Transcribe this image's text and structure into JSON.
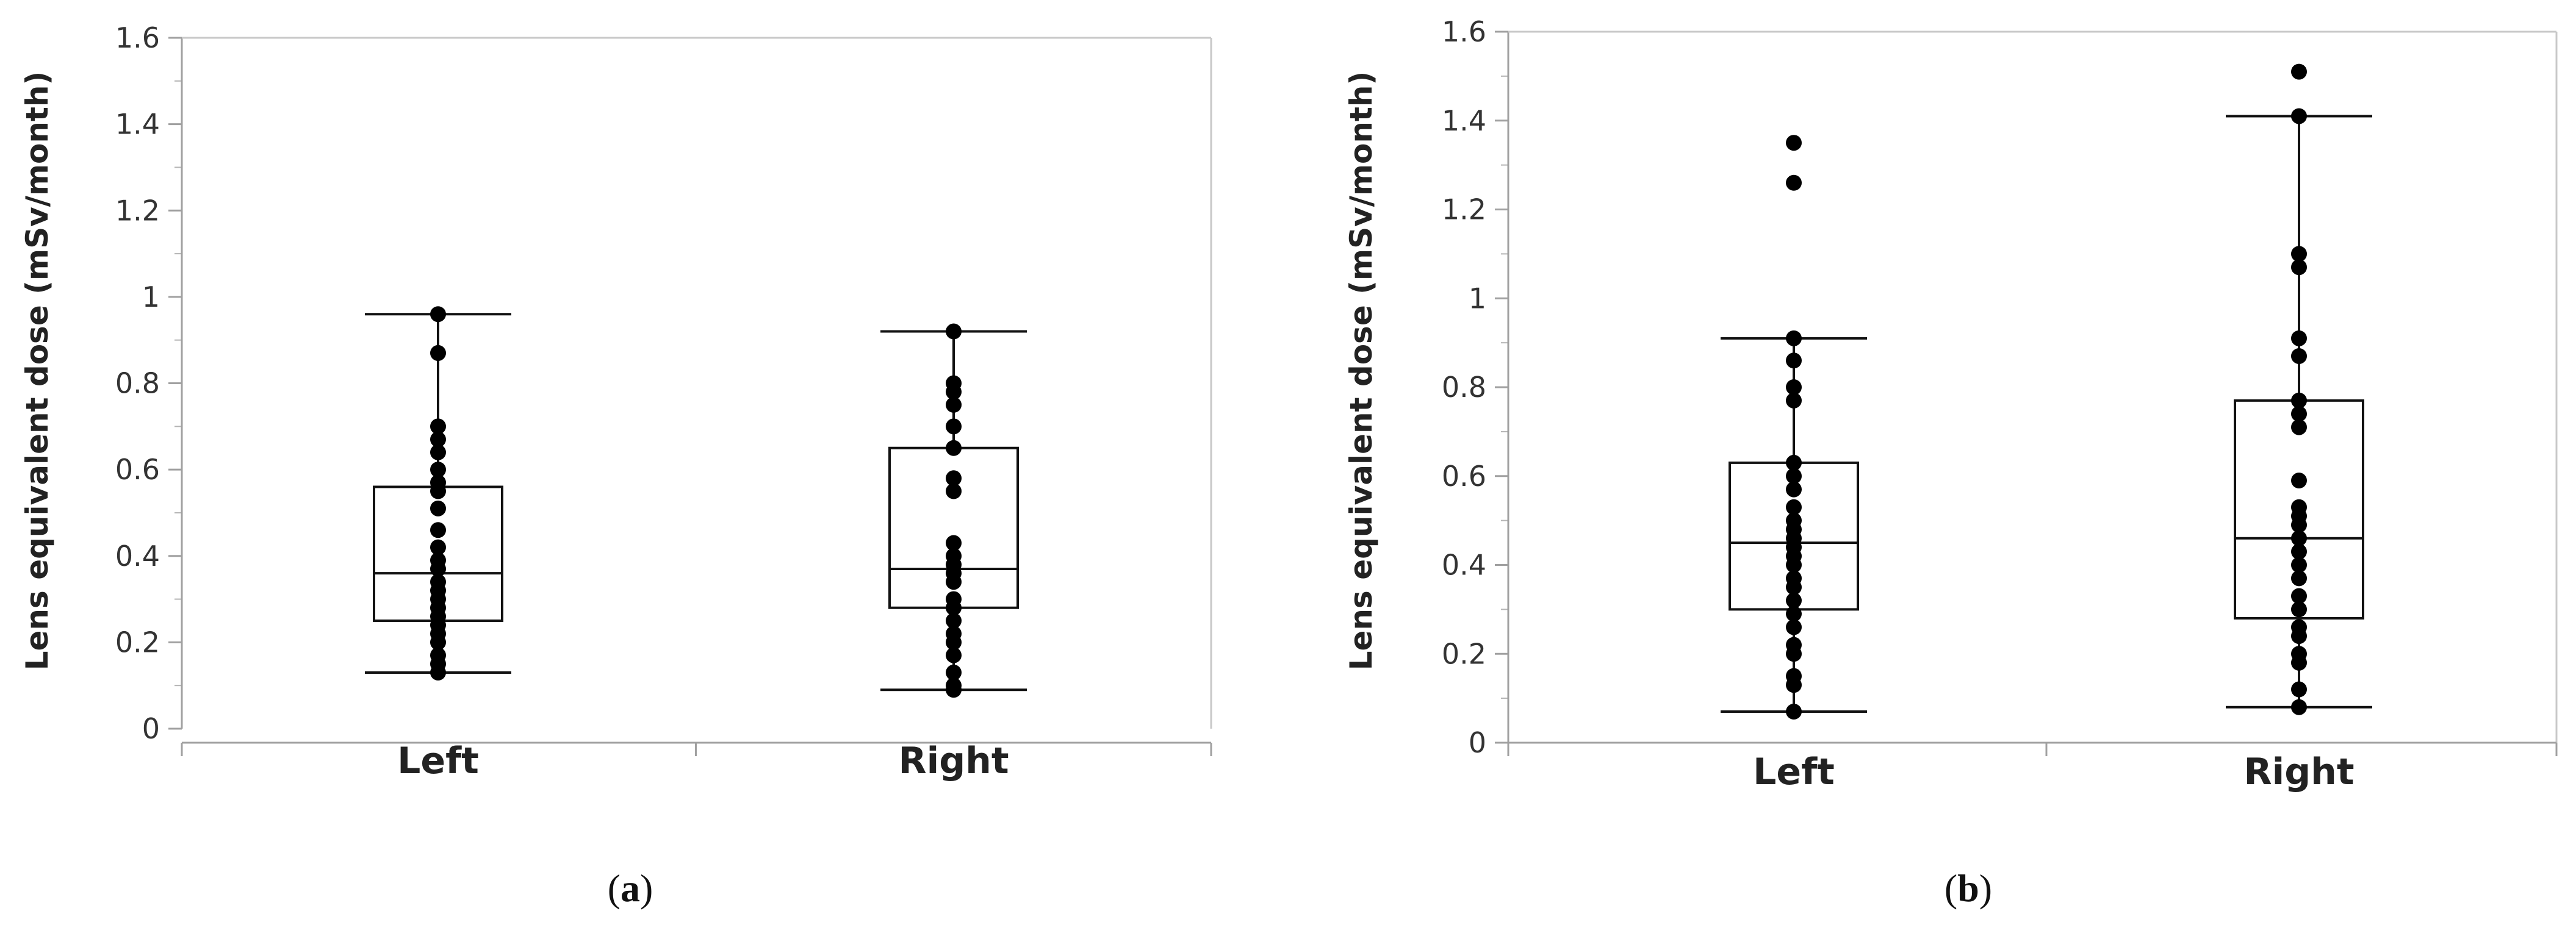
{
  "chart_data": [
    {
      "type": "box",
      "panel_label": "a",
      "categories": [
        "Left",
        "Right"
      ],
      "ylabel": "Lens equivalent dose (mSv/month)",
      "ylim": [
        0,
        1.6
      ],
      "yticks": [
        "0",
        "0.2",
        "0.4",
        "0.6",
        "0.8",
        "1",
        "1.2",
        "1.4",
        "1.6"
      ],
      "boxes": [
        {
          "name": "Left",
          "min": 0.13,
          "q1": 0.25,
          "median": 0.36,
          "q3": 0.56,
          "max": 0.96,
          "points": [
            0.96,
            0.87,
            0.7,
            0.67,
            0.64,
            0.6,
            0.57,
            0.55,
            0.51,
            0.46,
            0.42,
            0.39,
            0.37,
            0.34,
            0.32,
            0.3,
            0.28,
            0.26,
            0.24,
            0.22,
            0.2,
            0.17,
            0.15,
            0.13
          ]
        },
        {
          "name": "Right",
          "min": 0.09,
          "q1": 0.28,
          "median": 0.37,
          "q3": 0.65,
          "max": 0.92,
          "points": [
            0.92,
            0.8,
            0.78,
            0.75,
            0.7,
            0.65,
            0.58,
            0.55,
            0.43,
            0.4,
            0.38,
            0.36,
            0.34,
            0.3,
            0.28,
            0.25,
            0.22,
            0.2,
            0.17,
            0.13,
            0.1,
            0.09
          ]
        }
      ]
    },
    {
      "type": "box",
      "panel_label": "b",
      "categories": [
        "Left",
        "Right"
      ],
      "ylabel": "Lens equivalent dose (mSv/month)",
      "ylim": [
        0,
        1.6
      ],
      "yticks": [
        "0",
        "0.2",
        "0.4",
        "0.6",
        "0.8",
        "1",
        "1.2",
        "1.4",
        "1.6"
      ],
      "boxes": [
        {
          "name": "Left",
          "min": 0.07,
          "q1": 0.3,
          "median": 0.45,
          "q3": 0.63,
          "max": 0.91,
          "points": [
            1.35,
            1.26,
            0.91,
            0.86,
            0.8,
            0.77,
            0.63,
            0.6,
            0.57,
            0.53,
            0.5,
            0.48,
            0.46,
            0.44,
            0.42,
            0.4,
            0.37,
            0.35,
            0.32,
            0.29,
            0.26,
            0.22,
            0.2,
            0.15,
            0.13,
            0.07
          ]
        },
        {
          "name": "Right",
          "min": 0.08,
          "q1": 0.28,
          "median": 0.46,
          "q3": 0.77,
          "max": 1.41,
          "points": [
            1.51,
            1.41,
            1.1,
            1.07,
            0.91,
            0.87,
            0.77,
            0.74,
            0.71,
            0.59,
            0.53,
            0.51,
            0.49,
            0.46,
            0.43,
            0.4,
            0.37,
            0.33,
            0.3,
            0.26,
            0.24,
            0.2,
            0.18,
            0.12,
            0.08
          ]
        }
      ]
    }
  ]
}
